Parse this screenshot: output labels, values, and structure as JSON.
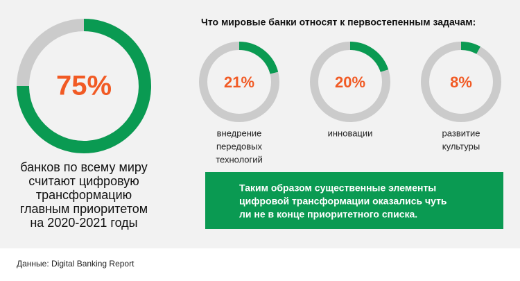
{
  "chart_data": [
    {
      "type": "donut",
      "values": [
        75
      ],
      "value_labels": [
        "75%"
      ],
      "color": "#0a9a52",
      "track_color": "#cbcbcb",
      "label_color": "#f15a24",
      "caption": [
        "банков по всему миру",
        "считают цифровую",
        "трансформацию",
        "главным приоритетом",
        "на 2020-2021 годы"
      ]
    },
    {
      "type": "donut",
      "values": [
        21
      ],
      "value_labels": [
        "21%"
      ],
      "color": "#0a9a52",
      "track_color": "#cbcbcb",
      "label_color": "#f15a24",
      "caption": [
        "внедрение",
        "передовых",
        "технологий"
      ]
    },
    {
      "type": "donut",
      "values": [
        20
      ],
      "value_labels": [
        "20%"
      ],
      "color": "#0a9a52",
      "track_color": "#cbcbcb",
      "label_color": "#f15a24",
      "caption": [
        "инновации"
      ]
    },
    {
      "type": "donut",
      "values": [
        8
      ],
      "value_labels": [
        "8%"
      ],
      "color": "#0a9a52",
      "track_color": "#cbcbcb",
      "label_color": "#f15a24",
      "caption": [
        "развитие",
        "культуры"
      ]
    }
  ],
  "heading": "Что мировые банки относят к первостепенным задачам:",
  "note": [
    "Таким образом существенные элементы",
    "цифровой трансформации оказались чуть",
    "ли не в конце приоритетного списка."
  ],
  "source": "Данные: Digital Banking Report"
}
